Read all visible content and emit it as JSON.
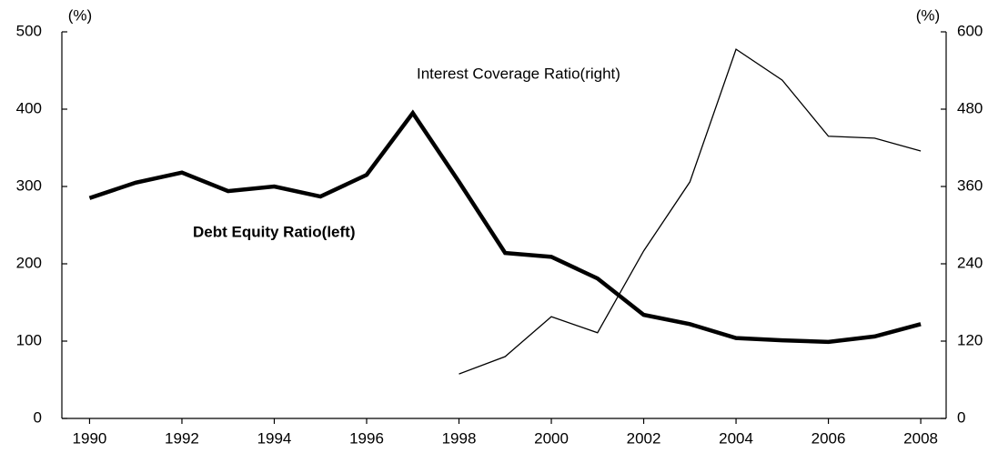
{
  "chart_data": {
    "type": "line",
    "ylabel": "(%)",
    "y2label": "(%)",
    "x": [
      1990,
      1991,
      1992,
      1993,
      1994,
      1995,
      1996,
      1997,
      1998,
      1999,
      2000,
      2001,
      2002,
      2003,
      2004,
      2005,
      2006,
      2007,
      2008
    ],
    "xlim": [
      1989.4,
      2008.55
    ],
    "xticks": [
      1990,
      1992,
      1994,
      1996,
      1998,
      2000,
      2002,
      2004,
      2006,
      2008
    ],
    "ylim": [
      0,
      500
    ],
    "yticks": [
      0,
      100,
      200,
      300,
      400,
      500
    ],
    "y2lim": [
      0,
      600
    ],
    "y2ticks": [
      0,
      120,
      240,
      360,
      480,
      600
    ],
    "series": [
      {
        "name": "Debt  Equity Ratio(left)",
        "color": "#000000",
        "width": 4.5,
        "values": [
          285,
          305,
          318,
          294,
          300,
          287,
          315,
          395,
          306,
          214,
          209,
          181,
          134,
          122,
          104,
          101,
          99,
          106,
          122
        ]
      },
      {
        "name": "Interest Coverage Ratio(right)",
        "color": "#000000",
        "width": 1.3,
        "axis": "y2",
        "values": [
          null,
          null,
          null,
          null,
          null,
          null,
          null,
          null,
          69,
          96,
          158,
          133,
          260,
          367,
          573,
          525,
          438,
          435,
          415
        ]
      }
    ]
  }
}
